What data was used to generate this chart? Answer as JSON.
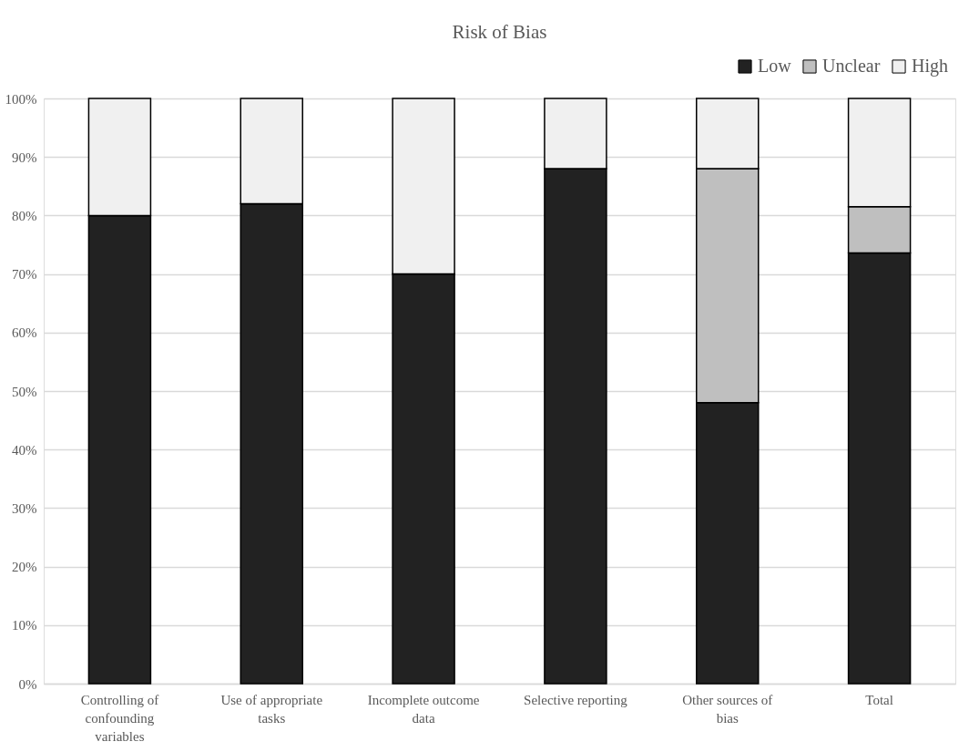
{
  "chart_data": {
    "type": "bar",
    "title": "Risk of Bias",
    "stacked": true,
    "legend": "top right",
    "grid": "y",
    "categories": [
      "Controlling of confounding variables",
      "Use of appropriate tasks",
      "Incomplete outcome data",
      "Selective reporting",
      "Other sources of bias",
      "Total"
    ],
    "series": [
      {
        "name": "Low",
        "color": "#222222",
        "values": [
          80,
          82,
          70,
          88,
          48,
          73.6
        ]
      },
      {
        "name": "Unclear",
        "color": "#bfbfbf",
        "values": [
          0,
          0,
          0,
          0,
          40,
          7.9
        ]
      },
      {
        "name": "High",
        "color": "#f0f0f0",
        "values": [
          20,
          18,
          30,
          12,
          12,
          18.5
        ]
      }
    ],
    "ylim": [
      0,
      100
    ],
    "yticks": [
      {
        "value": 0,
        "label": "0%"
      },
      {
        "value": 10,
        "label": "10%"
      },
      {
        "value": 20,
        "label": "20%"
      },
      {
        "value": 30,
        "label": "30%"
      },
      {
        "value": 40,
        "label": "40%"
      },
      {
        "value": 50,
        "label": "50%"
      },
      {
        "value": 60,
        "label": "60%"
      },
      {
        "value": 70,
        "label": "70%"
      },
      {
        "value": 80,
        "label": "80%"
      },
      {
        "value": 90,
        "label": "90%"
      },
      {
        "value": 100,
        "label": "100%"
      }
    ]
  }
}
